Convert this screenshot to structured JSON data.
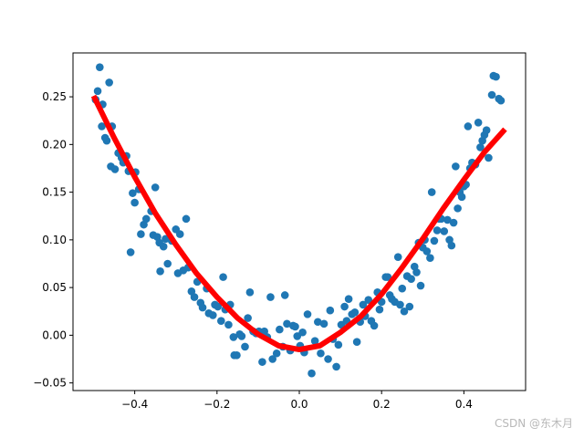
{
  "chart_data": {
    "type": "scatter",
    "xlim": [
      -0.55,
      0.55
    ],
    "ylim": [
      -0.058,
      0.296
    ],
    "x_ticks": [
      -0.4,
      -0.2,
      0.0,
      0.2,
      0.4
    ],
    "x_tick_labels": [
      "−0.4",
      "−0.2",
      "0.0",
      "0.2",
      "0.4"
    ],
    "y_ticks": [
      -0.05,
      0.0,
      0.05,
      0.1,
      0.15,
      0.2,
      0.25
    ],
    "y_tick_labels": [
      "−0.05",
      "0.00",
      "0.05",
      "0.10",
      "0.15",
      "0.20",
      "0.25"
    ],
    "grid": false,
    "colors": {
      "scatter": "#1f77b4",
      "fit_line": "#ff0000",
      "axes": "#000000"
    },
    "series": [
      {
        "kind": "scatter",
        "points": [
          [
            -0.495,
            0.247
          ],
          [
            -0.49,
            0.256
          ],
          [
            -0.485,
            0.281
          ],
          [
            -0.48,
            0.219
          ],
          [
            -0.478,
            0.242
          ],
          [
            -0.472,
            0.207
          ],
          [
            -0.468,
            0.204
          ],
          [
            -0.462,
            0.265
          ],
          [
            -0.458,
            0.177
          ],
          [
            -0.455,
            0.219
          ],
          [
            -0.448,
            0.174
          ],
          [
            -0.44,
            0.191
          ],
          [
            -0.432,
            0.186
          ],
          [
            -0.428,
            0.181
          ],
          [
            -0.42,
            0.188
          ],
          [
            -0.415,
            0.172
          ],
          [
            -0.41,
            0.087
          ],
          [
            -0.405,
            0.149
          ],
          [
            -0.4,
            0.139
          ],
          [
            -0.398,
            0.171
          ],
          [
            -0.39,
            0.153
          ],
          [
            -0.385,
            0.106
          ],
          [
            -0.378,
            0.116
          ],
          [
            -0.372,
            0.122
          ],
          [
            -0.36,
            0.13
          ],
          [
            -0.355,
            0.105
          ],
          [
            -0.35,
            0.155
          ],
          [
            -0.345,
            0.103
          ],
          [
            -0.34,
            0.097
          ],
          [
            -0.338,
            0.067
          ],
          [
            -0.33,
            0.093
          ],
          [
            -0.325,
            0.101
          ],
          [
            -0.32,
            0.075
          ],
          [
            -0.31,
            0.099
          ],
          [
            -0.3,
            0.111
          ],
          [
            -0.295,
            0.065
          ],
          [
            -0.29,
            0.106
          ],
          [
            -0.282,
            0.068
          ],
          [
            -0.275,
            0.122
          ],
          [
            -0.27,
            0.071
          ],
          [
            -0.262,
            0.046
          ],
          [
            -0.255,
            0.04
          ],
          [
            -0.248,
            0.056
          ],
          [
            -0.24,
            0.034
          ],
          [
            -0.235,
            0.029
          ],
          [
            -0.225,
            0.049
          ],
          [
            -0.22,
            0.023
          ],
          [
            -0.21,
            0.021
          ],
          [
            -0.205,
            0.032
          ],
          [
            -0.198,
            0.03
          ],
          [
            -0.19,
            0.015
          ],
          [
            -0.185,
            0.061
          ],
          [
            -0.18,
            0.027
          ],
          [
            -0.172,
            0.011
          ],
          [
            -0.168,
            0.032
          ],
          [
            -0.16,
            -0.002
          ],
          [
            -0.158,
            -0.021
          ],
          [
            -0.152,
            -0.021
          ],
          [
            -0.145,
            0.001
          ],
          [
            -0.14,
            -0.001
          ],
          [
            -0.132,
            -0.012
          ],
          [
            -0.125,
            0.018
          ],
          [
            -0.12,
            0.045
          ],
          [
            -0.112,
            0.004
          ],
          [
            -0.105,
            0.002
          ],
          [
            -0.098,
            0.004
          ],
          [
            -0.09,
            -0.028
          ],
          [
            -0.085,
            0.004
          ],
          [
            -0.078,
            -0.002
          ],
          [
            -0.07,
            0.04
          ],
          [
            -0.065,
            -0.025
          ],
          [
            -0.055,
            -0.019
          ],
          [
            -0.048,
            0.006
          ],
          [
            -0.04,
            -0.012
          ],
          [
            -0.035,
            0.042
          ],
          [
            -0.03,
            0.012
          ],
          [
            -0.022,
            -0.016
          ],
          [
            -0.015,
            0.01
          ],
          [
            -0.01,
            0.009
          ],
          [
            -0.005,
            -0.001
          ],
          [
            0.002,
            -0.011
          ],
          [
            0.008,
            0.003
          ],
          [
            0.012,
            -0.018
          ],
          [
            0.02,
            0.022
          ],
          [
            0.03,
            -0.04
          ],
          [
            0.038,
            -0.006
          ],
          [
            0.045,
            0.014
          ],
          [
            0.052,
            -0.019
          ],
          [
            0.06,
            0.012
          ],
          [
            0.07,
            -0.025
          ],
          [
            0.075,
            0.026
          ],
          [
            0.082,
            -0.004
          ],
          [
            0.09,
            -0.033
          ],
          [
            0.095,
            -0.01
          ],
          [
            0.102,
            0.011
          ],
          [
            0.11,
            0.03
          ],
          [
            0.115,
            0.015
          ],
          [
            0.12,
            0.038
          ],
          [
            0.128,
            0.022
          ],
          [
            0.135,
            0.024
          ],
          [
            0.14,
            -0.007
          ],
          [
            0.148,
            0.014
          ],
          [
            0.155,
            0.032
          ],
          [
            0.16,
            0.02
          ],
          [
            0.168,
            0.037
          ],
          [
            0.175,
            0.015
          ],
          [
            0.182,
            0.01
          ],
          [
            0.19,
            0.045
          ],
          [
            0.195,
            0.027
          ],
          [
            0.2,
            0.035
          ],
          [
            0.21,
            0.061
          ],
          [
            0.215,
            0.061
          ],
          [
            0.22,
            0.042
          ],
          [
            0.225,
            0.038
          ],
          [
            0.232,
            0.035
          ],
          [
            0.24,
            0.082
          ],
          [
            0.245,
            0.032
          ],
          [
            0.25,
            0.049
          ],
          [
            0.255,
            0.025
          ],
          [
            0.262,
            0.062
          ],
          [
            0.268,
            0.03
          ],
          [
            0.272,
            0.059
          ],
          [
            0.28,
            0.072
          ],
          [
            0.285,
            0.066
          ],
          [
            0.29,
            0.097
          ],
          [
            0.295,
            0.052
          ],
          [
            0.3,
            0.092
          ],
          [
            0.305,
            0.1
          ],
          [
            0.31,
            0.088
          ],
          [
            0.318,
            0.081
          ],
          [
            0.322,
            0.15
          ],
          [
            0.328,
            0.099
          ],
          [
            0.335,
            0.11
          ],
          [
            0.34,
            0.122
          ],
          [
            0.345,
            0.122
          ],
          [
            0.352,
            0.109
          ],
          [
            0.36,
            0.121
          ],
          [
            0.365,
            0.1
          ],
          [
            0.37,
            0.094
          ],
          [
            0.375,
            0.118
          ],
          [
            0.38,
            0.177
          ],
          [
            0.385,
            0.133
          ],
          [
            0.39,
            0.15
          ],
          [
            0.395,
            0.145
          ],
          [
            0.4,
            0.156
          ],
          [
            0.405,
            0.158
          ],
          [
            0.41,
            0.219
          ],
          [
            0.415,
            0.175
          ],
          [
            0.42,
            0.181
          ],
          [
            0.428,
            0.179
          ],
          [
            0.435,
            0.223
          ],
          [
            0.44,
            0.197
          ],
          [
            0.445,
            0.204
          ],
          [
            0.45,
            0.21
          ],
          [
            0.455,
            0.215
          ],
          [
            0.46,
            0.186
          ],
          [
            0.468,
            0.252
          ],
          [
            0.472,
            0.272
          ],
          [
            0.478,
            0.271
          ],
          [
            0.485,
            0.248
          ],
          [
            0.49,
            0.246
          ]
        ]
      },
      {
        "kind": "line",
        "x": [
          -0.5,
          -0.45,
          -0.4,
          -0.35,
          -0.3,
          -0.25,
          -0.2,
          -0.15,
          -0.1,
          -0.05,
          0.0,
          0.05,
          0.1,
          0.15,
          0.2,
          0.25,
          0.3,
          0.35,
          0.4,
          0.45,
          0.5
        ],
        "y": [
          0.251,
          0.207,
          0.166,
          0.128,
          0.095,
          0.065,
          0.04,
          0.018,
          0.001,
          -0.011,
          -0.015,
          -0.011,
          0.003,
          0.02,
          0.043,
          0.071,
          0.101,
          0.133,
          0.163,
          0.192,
          0.216
        ]
      }
    ]
  },
  "watermark": "CSDN @东木月"
}
